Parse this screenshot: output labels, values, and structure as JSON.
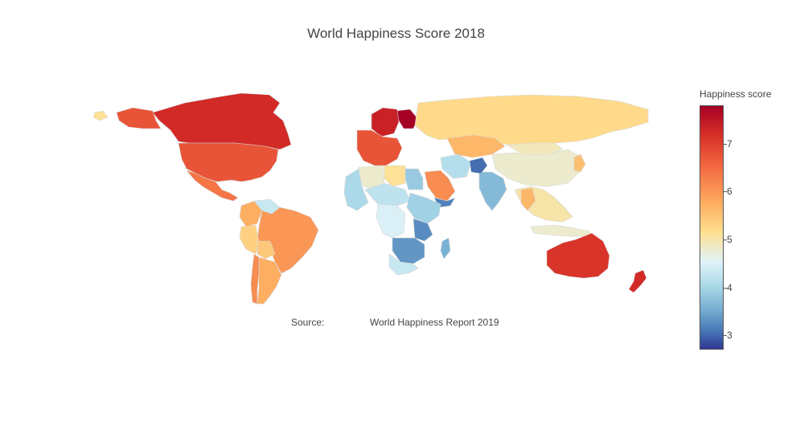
{
  "title": "World Happiness Score 2018",
  "annotation": {
    "source_label": "Source:",
    "source_text": "World Happiness Report 2019"
  },
  "colorbar": {
    "title": "Happiness score",
    "ticks": [
      "7",
      "6",
      "5",
      "4",
      "3"
    ],
    "range": [
      2.7,
      7.8
    ],
    "colorscale": [
      "#a50026",
      "#d73027",
      "#f46d43",
      "#fdae61",
      "#fee090",
      "#e0f3f8",
      "#abd9e9",
      "#74add1",
      "#4575b4",
      "#313695"
    ]
  },
  "map": {
    "projection": "natural earth / equirectangular-like",
    "land_border_color": "#cccccc",
    "regions": [
      {
        "name": "Canada",
        "score": 7.3
      },
      {
        "name": "United States",
        "score": 6.9
      },
      {
        "name": "Mexico",
        "score": 6.6
      },
      {
        "name": "Alaska",
        "score": 6.9
      },
      {
        "name": "Greenland",
        "score": 5.5
      },
      {
        "name": "Brazil",
        "score": 6.3
      },
      {
        "name": "Argentina",
        "score": 6.1
      },
      {
        "name": "Chile",
        "score": 6.4
      },
      {
        "name": "Peru",
        "score": 5.7
      },
      {
        "name": "Colombia",
        "score": 6.1
      },
      {
        "name": "Venezuela",
        "score": 4.7
      },
      {
        "name": "Bolivia",
        "score": 5.8
      },
      {
        "name": "Finland",
        "score": 7.8
      },
      {
        "name": "Norway/Sweden",
        "score": 7.4
      },
      {
        "name": "Western Europe",
        "score": 6.9
      },
      {
        "name": "Russia",
        "score": 5.6
      },
      {
        "name": "Kazakhstan",
        "score": 6.0
      },
      {
        "name": "China",
        "score": 5.2
      },
      {
        "name": "Mongolia",
        "score": 5.3
      },
      {
        "name": "India",
        "score": 4.0
      },
      {
        "name": "Iran",
        "score": 4.5
      },
      {
        "name": "Afghanistan",
        "score": 3.2
      },
      {
        "name": "Saudi Arabia",
        "score": 6.4
      },
      {
        "name": "Yemen",
        "score": 3.4
      },
      {
        "name": "Egypt",
        "score": 4.2
      },
      {
        "name": "Libya",
        "score": 5.5
      },
      {
        "name": "Algeria",
        "score": 5.2
      },
      {
        "name": "Sahel",
        "score": 4.6
      },
      {
        "name": "West Africa",
        "score": 4.4
      },
      {
        "name": "Central Africa",
        "score": 4.9
      },
      {
        "name": "East Africa",
        "score": 4.3
      },
      {
        "name": "Tanzania",
        "score": 3.5
      },
      {
        "name": "Southern Africa",
        "score": 3.6
      },
      {
        "name": "South Africa",
        "score": 4.7
      },
      {
        "name": "Madagascar",
        "score": 3.9
      },
      {
        "name": "Southeast Asia",
        "score": 5.4
      },
      {
        "name": "Thailand",
        "score": 6.0
      },
      {
        "name": "Japan",
        "score": 5.9
      },
      {
        "name": "Indonesia",
        "score": 5.2
      },
      {
        "name": "Australia",
        "score": 7.2
      },
      {
        "name": "New Zealand",
        "score": 7.3
      }
    ]
  }
}
